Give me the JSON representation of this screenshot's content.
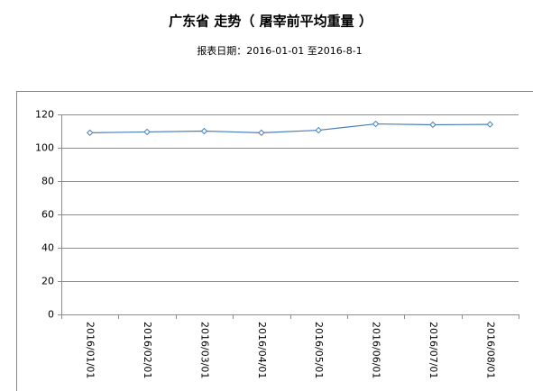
{
  "chart_data": {
    "type": "line",
    "title": "广东省 走势（ 屠宰前平均重量 ）",
    "subtitle": "报表日期：2016-01-01 至2016-8-1",
    "categories": [
      "2016/01/01",
      "2016/02/01",
      "2016/03/01",
      "2016/04/01",
      "2016/05/01",
      "2016/06/01",
      "2016/07/01",
      "2016/08/01"
    ],
    "series": [
      {
        "name": "屠宰前平均重量",
        "color": "#4a7ebb",
        "values": [
          109,
          109.5,
          110,
          109,
          110.5,
          114.3,
          113.8,
          114
        ]
      }
    ],
    "ylim": [
      0,
      120
    ],
    "yticks": [
      0,
      20,
      40,
      60,
      80,
      100,
      120
    ],
    "grid": true
  }
}
